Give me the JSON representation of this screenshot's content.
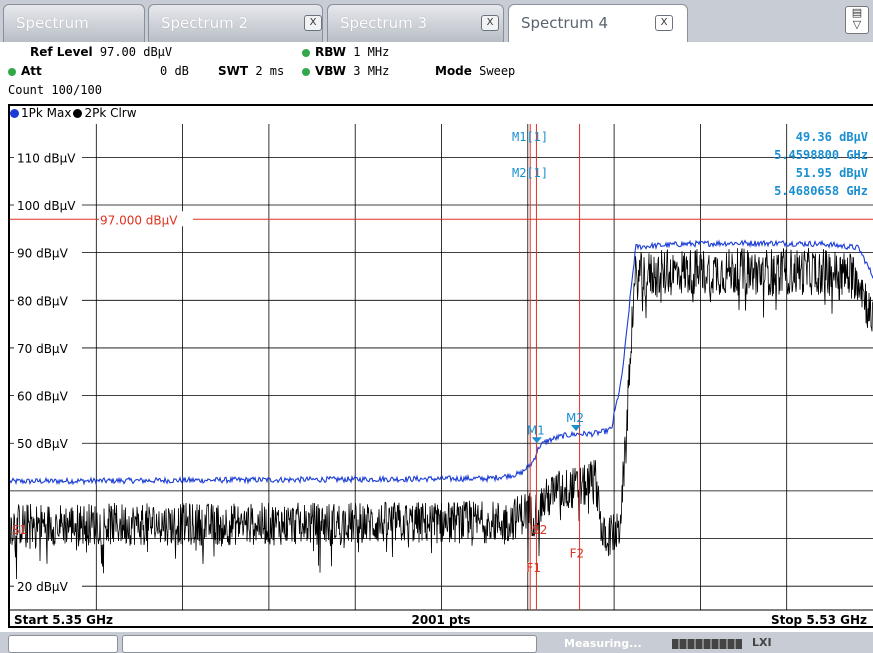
{
  "tabs": [
    {
      "label": "Spectrum",
      "closable": false,
      "active": false
    },
    {
      "label": "Spectrum 2",
      "closable": true,
      "active": false
    },
    {
      "label": "Spectrum 3",
      "closable": true,
      "active": false
    },
    {
      "label": "Spectrum 4",
      "closable": true,
      "active": true
    }
  ],
  "close_glyph": "X",
  "settings": {
    "ref_level_label": "Ref Level",
    "ref_level_value": "97.00 dBµV",
    "att_label": "Att",
    "att_value": "0 dB",
    "count_text": "Count 100/100",
    "swt_label": "SWT",
    "swt_value": "2 ms",
    "rbw_label": "RBW",
    "rbw_value": "1 MHz",
    "vbw_label": "VBW",
    "vbw_value": "3 MHz",
    "mode_label": "Mode",
    "mode_value": "Sweep"
  },
  "traces": [
    {
      "label": "1Pk Max",
      "color": "#1a3cd6"
    },
    {
      "label": "2Pk Clrw",
      "color": "#000000"
    }
  ],
  "chart_data": {
    "type": "line",
    "x_start_ghz": 5.35,
    "x_stop_ghz": 5.53,
    "ylim": [
      15,
      117
    ],
    "y_unit": "dBµV",
    "y_ticks": [
      {
        "value": 110,
        "label": "110 dBµV"
      },
      {
        "value": 100,
        "label": "100 dBµV"
      },
      {
        "value": 90,
        "label": "90 dBµV"
      },
      {
        "value": 80,
        "label": "80 dBµV"
      },
      {
        "value": 70,
        "label": "70 dBµV"
      },
      {
        "value": 60,
        "label": "60 dBµV"
      },
      {
        "value": 50,
        "label": "50 dBµV"
      },
      {
        "value": 20,
        "label": "20 dBµV"
      }
    ],
    "ref_line": {
      "value": 97.0,
      "label": "97.000 dBµV",
      "color": "#e03020"
    },
    "start_label": "Start 5.35 GHz",
    "points_label": "2001 pts",
    "stop_label": "Stop 5.53 GHz",
    "max_hold_profile": {
      "x_ghz": [
        5.35,
        5.4,
        5.45,
        5.4565,
        5.459,
        5.4604,
        5.462,
        5.4655,
        5.4685,
        5.4715,
        5.4738,
        5.4755,
        5.476,
        5.4775,
        5.4785,
        5.4795,
        5.4805,
        5.49,
        5.5,
        5.51,
        5.52,
        5.527,
        5.53
      ],
      "y_dbuv": [
        42.0,
        42.3,
        42.6,
        43.6,
        46.0,
        49.36,
        50.5,
        51.6,
        51.95,
        52.0,
        52.4,
        53.0,
        56.0,
        63.0,
        72.0,
        82.0,
        91.2,
        91.8,
        92.0,
        92.0,
        91.8,
        91.0,
        85.0
      ]
    },
    "clear_write_profile": {
      "x_ghz": [
        5.35,
        5.4,
        5.454,
        5.458,
        5.459,
        5.461,
        5.464,
        5.47,
        5.472,
        5.473,
        5.4735,
        5.476,
        5.477,
        5.4785,
        5.4795,
        5.4805,
        5.49,
        5.5,
        5.51,
        5.52,
        5.527,
        5.53
      ],
      "y_dbuv": [
        33.0,
        33.0,
        33.5,
        36.0,
        34.5,
        37.5,
        40.0,
        41.0,
        43.0,
        37.0,
        30.0,
        31.0,
        31.0,
        50.0,
        72.0,
        85.0,
        86.0,
        86.0,
        86.0,
        86.0,
        85.0,
        75.0
      ]
    },
    "display_lines": [
      {
        "label": "S1",
        "x_ghz": 5.35,
        "color": "#e03020"
      },
      {
        "label": "S2",
        "x_ghz": 5.4585,
        "color": "#e03020"
      }
    ],
    "frequency_lines": [
      {
        "label": "F1",
        "x_ghz": 5.4598,
        "color": "#e03020"
      },
      {
        "label": "F2",
        "x_ghz": 5.4688,
        "color": "#e03020"
      }
    ],
    "markers": [
      {
        "label": "M1",
        "x_ghz": 5.45988,
        "y_dbuv": 49.36,
        "color": "#1a8fd0"
      },
      {
        "label": "M2",
        "x_ghz": 5.4680658,
        "y_dbuv": 51.95,
        "color": "#1a8fd0"
      }
    ],
    "marker_table": [
      {
        "name": "M1[1]",
        "level": "49.36 dBµV",
        "freq": "5.4598800 GHz"
      },
      {
        "name": "M2[1]",
        "level": "51.95 dBµV",
        "freq": "5.4680658 GHz"
      }
    ]
  },
  "status": {
    "measuring": "Measuring..."
  }
}
